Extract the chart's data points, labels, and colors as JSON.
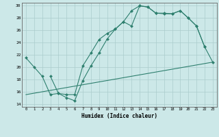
{
  "xlabel": "Humidex (Indice chaleur)",
  "bg_color": "#cce8e8",
  "grid_color": "#aacccc",
  "line_color": "#2e7f6e",
  "xlim": [
    -0.5,
    23.5
  ],
  "ylim": [
    13.5,
    30.5
  ],
  "yticks": [
    14,
    16,
    18,
    20,
    22,
    24,
    26,
    28,
    30
  ],
  "xticks": [
    0,
    1,
    2,
    3,
    4,
    5,
    6,
    7,
    8,
    9,
    10,
    11,
    12,
    13,
    14,
    15,
    16,
    17,
    18,
    19,
    20,
    21,
    22,
    23
  ],
  "line1_x": [
    0,
    1,
    2,
    3,
    4,
    5,
    6,
    7,
    8,
    9,
    10,
    11,
    12,
    13,
    14,
    15,
    16,
    17,
    18,
    19,
    20,
    21,
    22
  ],
  "line1_y": [
    21.5,
    20.0,
    18.5,
    15.5,
    15.7,
    15.0,
    14.5,
    17.8,
    20.2,
    22.3,
    24.6,
    26.2,
    27.4,
    26.7,
    30.0,
    29.8,
    28.8,
    28.7,
    28.7,
    29.2,
    28.0,
    26.7,
    23.3
  ],
  "line2_x": [
    3,
    4,
    5,
    6,
    7,
    8,
    9,
    10,
    11,
    12,
    13,
    14,
    15,
    16,
    17,
    18,
    19,
    20,
    21,
    22,
    23
  ],
  "line2_y": [
    18.5,
    15.7,
    15.5,
    15.5,
    20.2,
    22.3,
    24.5,
    25.5,
    26.2,
    27.4,
    29.2,
    30.0,
    29.8,
    28.8,
    28.8,
    28.7,
    29.2,
    28.0,
    26.7,
    23.3,
    20.8
  ],
  "line3_x": [
    0,
    23
  ],
  "line3_y": [
    15.5,
    20.8
  ]
}
